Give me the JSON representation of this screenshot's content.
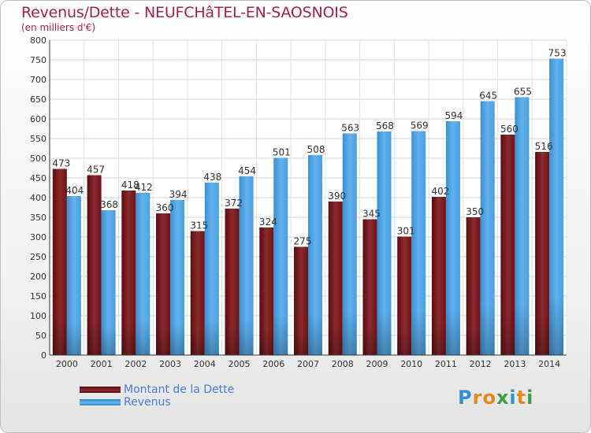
{
  "header": {
    "title": "Revenus/Dette - NEUFCHâTEL-EN-SAOSNOIS",
    "subtitle": "(en milliers d'€)"
  },
  "legend": {
    "debt_label": "Montant de la Dette",
    "revenue_label": "Revenus"
  },
  "logo": {
    "chars": [
      "P",
      "r",
      "o",
      "x",
      "i",
      "t",
      "i"
    ],
    "colors": [
      "#2f8fd8",
      "#e8881c",
      "#e8881c",
      "#3aa040",
      "#2f8fd8",
      "#e8881c",
      "#3aa040"
    ]
  },
  "colors": {
    "debt": "#7a1e22",
    "revenue": "#4aa0e0",
    "title": "#a2224a",
    "legend_text": "#4a7cd8"
  },
  "chart_data": {
    "type": "bar",
    "categories": [
      "2000",
      "2001",
      "2002",
      "2003",
      "2004",
      "2005",
      "2006",
      "2007",
      "2008",
      "2009",
      "2010",
      "2011",
      "2012",
      "2013",
      "2014"
    ],
    "series": [
      {
        "name": "Montant de la Dette",
        "values": [
          473,
          457,
          418,
          360,
          315,
          372,
          324,
          275,
          390,
          345,
          301,
          402,
          350,
          560,
          516
        ]
      },
      {
        "name": "Revenus",
        "values": [
          404,
          368,
          412,
          394,
          438,
          454,
          501,
          508,
          563,
          568,
          569,
          594,
          645,
          655,
          753
        ]
      }
    ],
    "ylim": [
      0,
      800
    ],
    "yticks": [
      "0",
      "50",
      "100",
      "150",
      "200",
      "250",
      "300",
      "350",
      "400",
      "450",
      "500",
      "550",
      "600",
      "650",
      "700",
      "750",
      "800"
    ],
    "grid": true,
    "legend_position": "bottom-left"
  }
}
